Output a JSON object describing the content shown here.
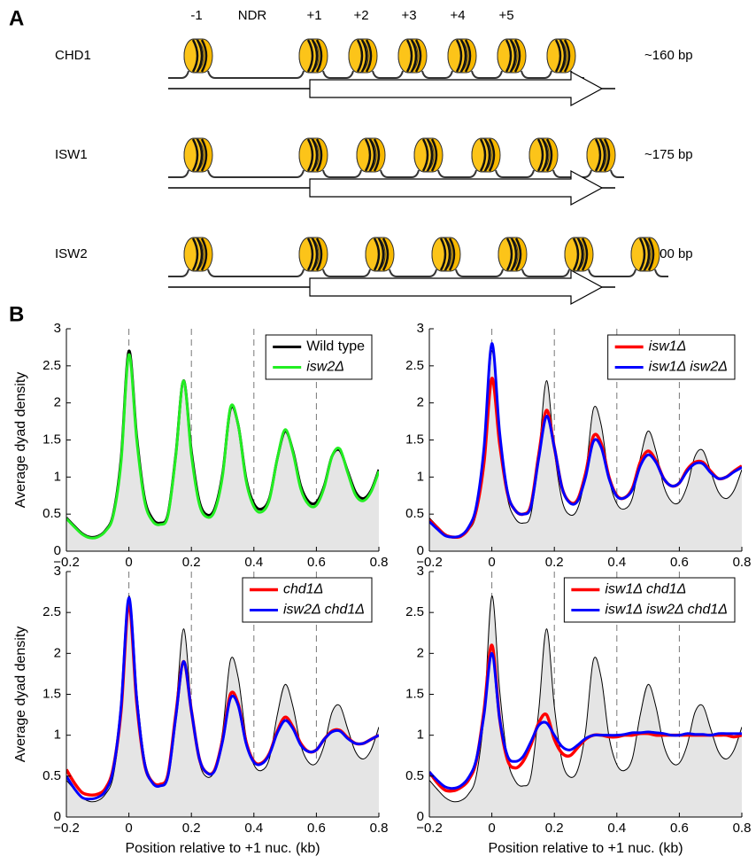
{
  "panel_labels": [
    "A",
    "B"
  ],
  "diagram": {
    "positions": [
      "-1",
      "NDR",
      "+1",
      "+2",
      "+3",
      "+4",
      "+5"
    ],
    "rows": [
      {
        "name": "CHD1",
        "spacing": "~160 bp"
      },
      {
        "name": "ISW1",
        "spacing": "~175 bp"
      },
      {
        "name": "ISW2",
        "spacing": "~200 bp"
      }
    ]
  },
  "chart_data": [
    {
      "type": "line",
      "ylabel": "Average dyad density",
      "x": [
        -0.2,
        -0.175,
        -0.15,
        -0.125,
        -0.1,
        -0.075,
        -0.05,
        -0.025,
        0,
        0.025,
        0.05,
        0.075,
        0.1,
        0.125,
        0.15,
        0.175,
        0.2,
        0.225,
        0.25,
        0.275,
        0.3,
        0.325,
        0.35,
        0.375,
        0.4,
        0.425,
        0.45,
        0.475,
        0.5,
        0.525,
        0.55,
        0.575,
        0.6,
        0.625,
        0.65,
        0.675,
        0.7,
        0.725,
        0.75,
        0.775,
        0.8
      ],
      "xlim": [
        -0.2,
        0.8
      ],
      "xticks": [
        {
          "value": -0.2,
          "label": "−0.2"
        },
        0,
        0.2,
        0.4,
        0.6,
        0.8
      ],
      "ylim": [
        0,
        3
      ],
      "yticks": [
        0,
        0.5,
        1,
        1.5,
        2,
        2.5,
        3
      ],
      "vlines": [
        0,
        0.2,
        0.4,
        0.6
      ],
      "legend": "upper right",
      "series": [
        {
          "name": "Wild type",
          "color": "#000000",
          "fill": "#e5e5e5",
          "linewidth": 3,
          "italic": false,
          "values": [
            0.45,
            0.34,
            0.24,
            0.19,
            0.2,
            0.28,
            0.5,
            1.25,
            2.7,
            1.55,
            0.72,
            0.44,
            0.38,
            0.5,
            1.3,
            2.3,
            1.35,
            0.68,
            0.49,
            0.58,
            1.05,
            1.92,
            1.7,
            0.98,
            0.64,
            0.57,
            0.72,
            1.25,
            1.62,
            1.35,
            0.88,
            0.67,
            0.66,
            0.88,
            1.28,
            1.36,
            1.08,
            0.8,
            0.71,
            0.82,
            1.1
          ]
        },
        {
          "name": "isw2Δ",
          "color": "#22ee22",
          "linewidth": 3,
          "italic": true,
          "values": [
            0.44,
            0.33,
            0.23,
            0.18,
            0.19,
            0.27,
            0.48,
            1.2,
            2.65,
            1.5,
            0.68,
            0.41,
            0.36,
            0.48,
            1.28,
            2.3,
            1.3,
            0.64,
            0.46,
            0.55,
            1.02,
            1.94,
            1.7,
            0.95,
            0.6,
            0.53,
            0.7,
            1.25,
            1.64,
            1.33,
            0.84,
            0.63,
            0.62,
            0.86,
            1.28,
            1.38,
            1.06,
            0.76,
            0.68,
            0.8,
            1.08
          ]
        }
      ]
    },
    {
      "type": "line",
      "x": [
        -0.2,
        -0.175,
        -0.15,
        -0.125,
        -0.1,
        -0.075,
        -0.05,
        -0.025,
        0,
        0.025,
        0.05,
        0.075,
        0.1,
        0.125,
        0.15,
        0.175,
        0.2,
        0.225,
        0.25,
        0.275,
        0.3,
        0.325,
        0.35,
        0.375,
        0.4,
        0.425,
        0.45,
        0.475,
        0.5,
        0.525,
        0.55,
        0.575,
        0.6,
        0.625,
        0.65,
        0.675,
        0.7,
        0.725,
        0.75,
        0.775,
        0.8
      ],
      "xlim": [
        -0.2,
        0.8
      ],
      "xticks": [
        {
          "value": -0.2,
          "label": "−0.2"
        },
        0,
        0.2,
        0.4,
        0.6,
        0.8
      ],
      "ylim": [
        0,
        3
      ],
      "yticks": [
        0,
        0.5,
        1,
        1.5,
        2,
        2.5,
        3
      ],
      "vlines": [
        0,
        0.2,
        0.4,
        0.6
      ],
      "legend": "upper right",
      "series": [
        {
          "color": "#000000",
          "fill": "#e5e5e5",
          "linewidth": 1,
          "values": [
            0.45,
            0.34,
            0.24,
            0.19,
            0.2,
            0.28,
            0.5,
            1.25,
            2.7,
            1.55,
            0.72,
            0.44,
            0.38,
            0.5,
            1.3,
            2.3,
            1.35,
            0.68,
            0.49,
            0.58,
            1.05,
            1.92,
            1.7,
            0.98,
            0.64,
            0.57,
            0.72,
            1.25,
            1.62,
            1.35,
            0.88,
            0.67,
            0.66,
            0.88,
            1.28,
            1.36,
            1.08,
            0.8,
            0.71,
            0.82,
            1.1
          ]
        },
        {
          "name": "isw1Δ",
          "color": "#ff0000",
          "linewidth": 3.5,
          "italic": true,
          "values": [
            0.42,
            0.32,
            0.22,
            0.19,
            0.2,
            0.3,
            0.55,
            1.2,
            2.33,
            1.45,
            0.78,
            0.55,
            0.5,
            0.62,
            1.3,
            1.9,
            1.4,
            0.85,
            0.66,
            0.7,
            1.05,
            1.55,
            1.45,
            1.0,
            0.75,
            0.72,
            0.85,
            1.2,
            1.35,
            1.22,
            0.98,
            0.88,
            0.92,
            1.1,
            1.2,
            1.2,
            1.08,
            0.98,
            1.0,
            1.08,
            1.15
          ]
        },
        {
          "name": "isw1Δ isw2Δ",
          "color": "#0000ff",
          "linewidth": 3,
          "italic": true,
          "values": [
            0.4,
            0.3,
            0.21,
            0.19,
            0.21,
            0.32,
            0.6,
            1.4,
            2.8,
            1.6,
            0.8,
            0.55,
            0.5,
            0.6,
            1.25,
            1.82,
            1.4,
            0.85,
            0.65,
            0.68,
            1.0,
            1.48,
            1.4,
            0.98,
            0.74,
            0.72,
            0.83,
            1.15,
            1.3,
            1.2,
            0.98,
            0.88,
            0.92,
            1.08,
            1.18,
            1.18,
            1.06,
            0.98,
            1.0,
            1.07,
            1.13
          ]
        }
      ]
    },
    {
      "type": "line",
      "ylabel": "Average dyad density",
      "xlabel": "Position relative to +1 nuc. (kb)",
      "x": [
        -0.2,
        -0.175,
        -0.15,
        -0.125,
        -0.1,
        -0.075,
        -0.05,
        -0.025,
        0,
        0.025,
        0.05,
        0.075,
        0.1,
        0.125,
        0.15,
        0.175,
        0.2,
        0.225,
        0.25,
        0.275,
        0.3,
        0.325,
        0.35,
        0.375,
        0.4,
        0.425,
        0.45,
        0.475,
        0.5,
        0.525,
        0.55,
        0.575,
        0.6,
        0.625,
        0.65,
        0.675,
        0.7,
        0.725,
        0.75,
        0.775,
        0.8
      ],
      "xlim": [
        -0.2,
        0.8
      ],
      "xticks": [
        {
          "value": -0.2,
          "label": "−0.2"
        },
        0,
        0.2,
        0.4,
        0.6,
        0.8
      ],
      "ylim": [
        0,
        3
      ],
      "yticks": [
        0,
        0.5,
        1,
        1.5,
        2,
        2.5,
        3
      ],
      "vlines": [
        0,
        0.2,
        0.4,
        0.6
      ],
      "legend": "upper right",
      "series": [
        {
          "color": "#000000",
          "fill": "#e5e5e5",
          "linewidth": 1,
          "values": [
            0.45,
            0.34,
            0.24,
            0.19,
            0.2,
            0.28,
            0.5,
            1.25,
            2.7,
            1.55,
            0.72,
            0.44,
            0.38,
            0.5,
            1.3,
            2.3,
            1.35,
            0.68,
            0.49,
            0.58,
            1.05,
            1.92,
            1.7,
            0.98,
            0.64,
            0.57,
            0.72,
            1.25,
            1.62,
            1.35,
            0.88,
            0.67,
            0.66,
            0.88,
            1.28,
            1.36,
            1.08,
            0.8,
            0.71,
            0.82,
            1.1
          ]
        },
        {
          "name": "chd1Δ",
          "color": "#ff0000",
          "linewidth": 3.5,
          "italic": true,
          "values": [
            0.58,
            0.42,
            0.3,
            0.27,
            0.28,
            0.35,
            0.6,
            1.3,
            2.6,
            1.4,
            0.65,
            0.43,
            0.4,
            0.52,
            1.25,
            1.9,
            1.3,
            0.72,
            0.54,
            0.58,
            0.95,
            1.5,
            1.38,
            0.92,
            0.68,
            0.66,
            0.78,
            1.05,
            1.22,
            1.1,
            0.9,
            0.8,
            0.82,
            0.95,
            1.05,
            1.06,
            0.97,
            0.9,
            0.9,
            0.95,
            1.0
          ]
        },
        {
          "name": "isw2Δ chd1Δ",
          "color": "#0000ff",
          "linewidth": 3,
          "italic": true,
          "values": [
            0.5,
            0.35,
            0.24,
            0.22,
            0.24,
            0.32,
            0.58,
            1.35,
            2.68,
            1.45,
            0.66,
            0.42,
            0.38,
            0.5,
            1.22,
            1.9,
            1.3,
            0.72,
            0.54,
            0.57,
            0.93,
            1.45,
            1.36,
            0.9,
            0.67,
            0.65,
            0.77,
            1.03,
            1.18,
            1.08,
            0.88,
            0.8,
            0.82,
            0.95,
            1.04,
            1.05,
            0.96,
            0.9,
            0.9,
            0.95,
            1.0
          ]
        }
      ]
    },
    {
      "type": "line",
      "xlabel": "Position relative to +1 nuc. (kb)",
      "x": [
        -0.2,
        -0.175,
        -0.15,
        -0.125,
        -0.1,
        -0.075,
        -0.05,
        -0.025,
        0,
        0.025,
        0.05,
        0.075,
        0.1,
        0.125,
        0.15,
        0.175,
        0.2,
        0.225,
        0.25,
        0.275,
        0.3,
        0.325,
        0.35,
        0.375,
        0.4,
        0.425,
        0.45,
        0.475,
        0.5,
        0.525,
        0.55,
        0.575,
        0.6,
        0.625,
        0.65,
        0.675,
        0.7,
        0.725,
        0.75,
        0.775,
        0.8
      ],
      "xlim": [
        -0.2,
        0.8
      ],
      "xticks": [
        {
          "value": -0.2,
          "label": "−0.2"
        },
        0,
        0.2,
        0.4,
        0.6,
        0.8
      ],
      "ylim": [
        0,
        3
      ],
      "yticks": [
        0,
        0.5,
        1,
        1.5,
        2,
        2.5,
        3
      ],
      "vlines": [
        0,
        0.2,
        0.4,
        0.6
      ],
      "legend": "upper right",
      "series": [
        {
          "color": "#000000",
          "fill": "#e5e5e5",
          "linewidth": 1,
          "values": [
            0.45,
            0.34,
            0.24,
            0.19,
            0.2,
            0.28,
            0.5,
            1.25,
            2.7,
            1.55,
            0.72,
            0.44,
            0.38,
            0.5,
            1.3,
            2.3,
            1.35,
            0.68,
            0.49,
            0.58,
            1.05,
            1.92,
            1.7,
            0.98,
            0.64,
            0.57,
            0.72,
            1.25,
            1.62,
            1.35,
            0.88,
            0.67,
            0.66,
            0.88,
            1.28,
            1.36,
            1.08,
            0.8,
            0.71,
            0.82,
            1.1
          ]
        },
        {
          "name": "isw1Δ chd1Δ",
          "color": "#ff0000",
          "linewidth": 3.5,
          "italic": true,
          "values": [
            0.55,
            0.42,
            0.33,
            0.32,
            0.36,
            0.45,
            0.68,
            1.3,
            2.1,
            1.2,
            0.7,
            0.6,
            0.68,
            0.88,
            1.15,
            1.25,
            0.95,
            0.78,
            0.75,
            0.85,
            0.95,
            1.0,
            1.0,
            0.98,
            0.98,
            1.0,
            1.0,
            1.02,
            1.02,
            1.0,
            1.0,
            1.0,
            1.0,
            1.0,
            1.0,
            1.0,
            1.0,
            1.0,
            1.0,
            0.98,
            1.0
          ]
        },
        {
          "name": "isw1Δ isw2Δ chd1Δ",
          "color": "#0000ff",
          "linewidth": 3,
          "italic": true,
          "values": [
            0.55,
            0.45,
            0.37,
            0.35,
            0.38,
            0.48,
            0.7,
            1.25,
            2.0,
            1.2,
            0.75,
            0.68,
            0.74,
            0.92,
            1.12,
            1.15,
            1.0,
            0.86,
            0.82,
            0.88,
            0.96,
            1.0,
            1.0,
            1.0,
            1.0,
            1.01,
            1.03,
            1.03,
            1.04,
            1.03,
            1.02,
            1.0,
            1.0,
            1.02,
            1.01,
            1.01,
            1.0,
            1.02,
            1.02,
            1.02,
            1.02
          ]
        }
      ]
    }
  ]
}
